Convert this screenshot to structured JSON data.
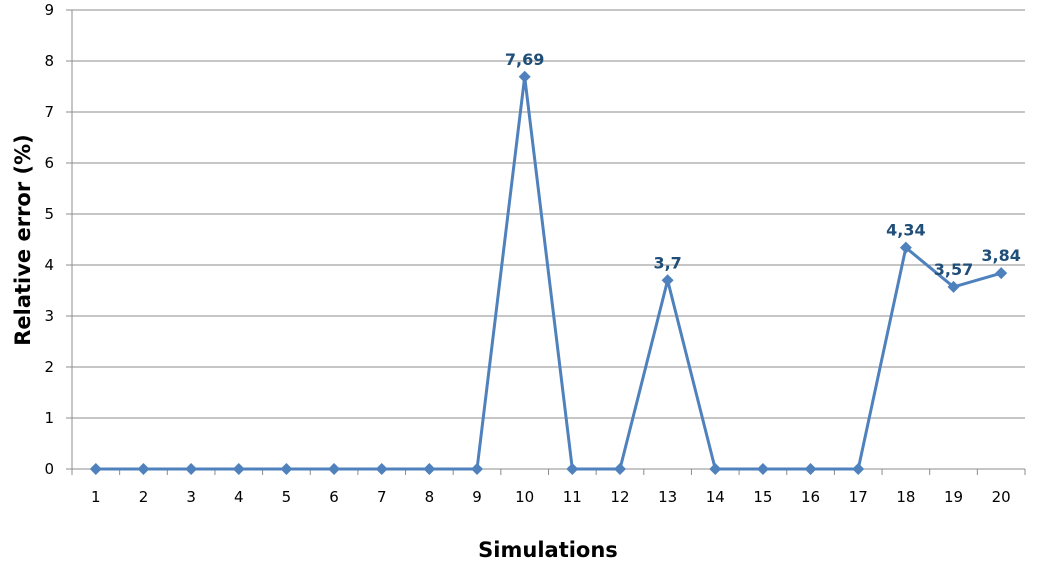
{
  "chart_data": {
    "type": "line",
    "title": "",
    "xlabel": "Simulations",
    "ylabel": "Relative error (%)",
    "categories": [
      "1",
      "2",
      "3",
      "4",
      "5",
      "6",
      "7",
      "8",
      "9",
      "10",
      "11",
      "12",
      "13",
      "14",
      "15",
      "16",
      "17",
      "18",
      "19",
      "20"
    ],
    "series": [
      {
        "values": [
          0,
          0,
          0,
          0,
          0,
          0,
          0,
          0,
          0,
          7.69,
          0,
          0,
          3.7,
          0,
          0,
          0,
          0,
          4.34,
          3.57,
          3.84
        ],
        "color": "#4f81bd",
        "marker": "diamond"
      }
    ],
    "data_labels": [
      {
        "index": 9,
        "text": "7,69"
      },
      {
        "index": 12,
        "text": "3,7"
      },
      {
        "index": 17,
        "text": "4,34"
      },
      {
        "index": 18,
        "text": "3,57"
      },
      {
        "index": 19,
        "text": "3,84"
      }
    ],
    "yticks": [
      "0",
      "1",
      "2",
      "3",
      "4",
      "5",
      "6",
      "7",
      "8",
      "9"
    ],
    "ylim": [
      0,
      9
    ],
    "grid": true,
    "legend": "none",
    "colors": {
      "line": "#4f81bd",
      "data_label": "#1f4e79",
      "grid": "#8c8c8c"
    }
  }
}
